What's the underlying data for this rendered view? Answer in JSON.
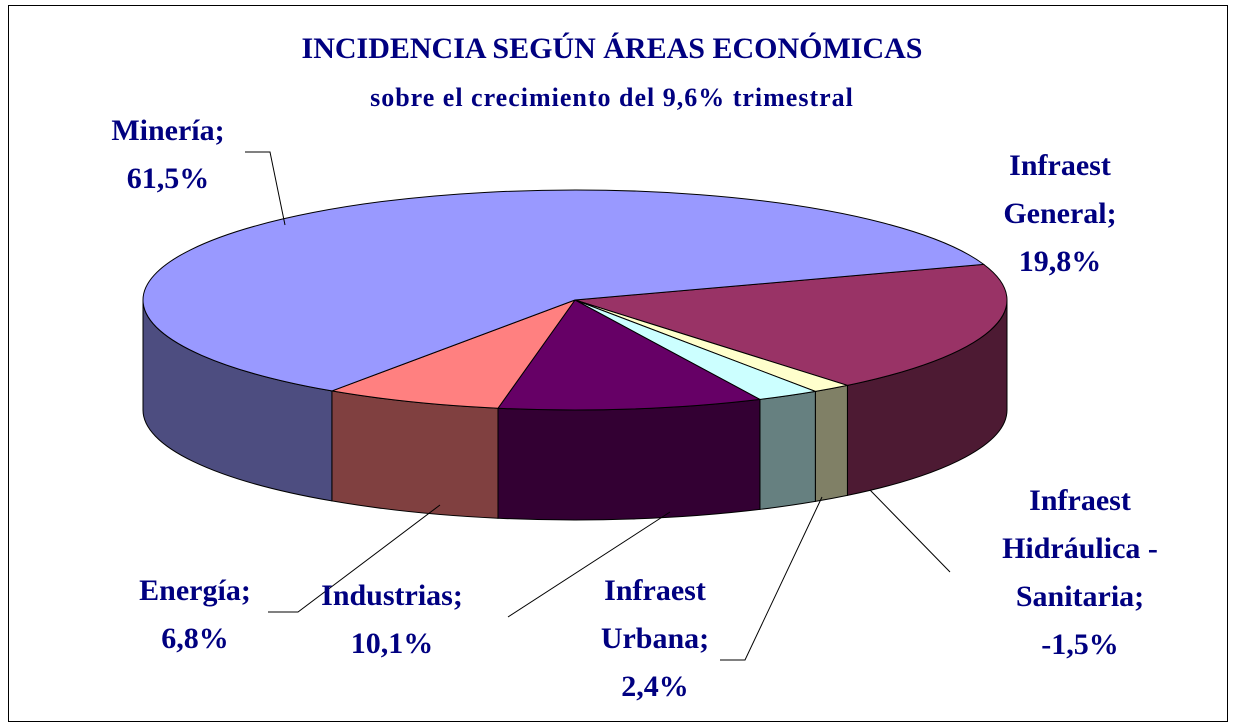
{
  "chart_data": {
    "type": "pie3d",
    "title": "INCIDENCIA SEGÚN ÁREAS ECONÓMICAS",
    "subtitle": "sobre el crecimiento del  9,6% trimestral",
    "categories": [
      "Infraest General;",
      "Infraest Hidráulica - Sanitaria;",
      "Infraest Urbana;",
      "Industrias;",
      "Energía;",
      "Minería;"
    ],
    "values": [
      19.8,
      -1.5,
      2.4,
      10.1,
      6.8,
      61.5
    ],
    "value_labels": [
      "19,8%",
      "-1,5%",
      "2,4%",
      "10,1%",
      "6,8%",
      "61,5%"
    ],
    "colors": [
      "#993366",
      "#ffffcc",
      "#ccffff",
      "#660066",
      "#ff8080",
      "#9999ff"
    ]
  }
}
